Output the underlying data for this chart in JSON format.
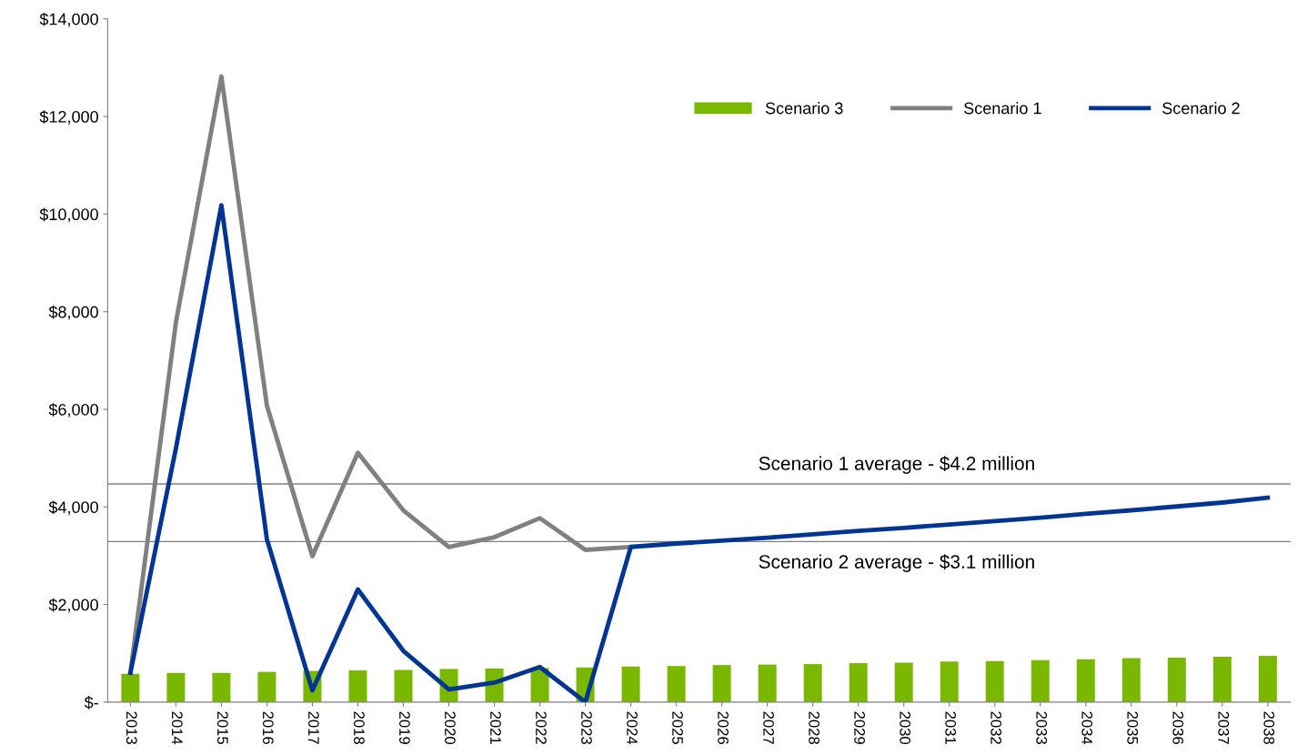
{
  "chart_data": {
    "type": "bar",
    "categories": [
      "2013",
      "2014",
      "2015",
      "2016",
      "2017",
      "2018",
      "2019",
      "2020",
      "2021",
      "2022",
      "2023",
      "2024",
      "2025",
      "2026",
      "2027",
      "2028",
      "2029",
      "2030",
      "2031",
      "2032",
      "2033",
      "2034",
      "2035",
      "2036",
      "2037",
      "2038"
    ],
    "series": [
      {
        "name": "Scenario 3",
        "color": "#7ab800",
        "values": [
          580,
          600,
          600,
          620,
          640,
          650,
          660,
          680,
          690,
          700,
          710,
          730,
          740,
          760,
          770,
          780,
          800,
          810,
          830,
          840,
          860,
          880,
          900,
          910,
          930,
          950
        ]
      },
      {
        "name": "Scenario 1",
        "type": "line",
        "color": "#808080",
        "values": [
          600,
          7780,
          12820,
          6080,
          2990,
          5110,
          3930,
          3180,
          3380,
          3770,
          3120,
          3180,
          null,
          null,
          null,
          null,
          null,
          null,
          null,
          null,
          null,
          null,
          null,
          null,
          null,
          null
        ]
      },
      {
        "name": "Scenario 2",
        "type": "line",
        "color": "#003591",
        "values": [
          600,
          5200,
          10180,
          3340,
          240,
          2310,
          1050,
          260,
          400,
          720,
          0,
          3180,
          3250,
          3310,
          3370,
          3440,
          3510,
          3570,
          3640,
          3710,
          3780,
          3860,
          3930,
          4010,
          4090,
          4190
        ]
      }
    ],
    "ylim": [
      0,
      14000
    ],
    "yticks": [
      {
        "value": 0,
        "label": "$-"
      },
      {
        "value": 2000,
        "label": "$2,000"
      },
      {
        "value": 4000,
        "label": "$4,000"
      },
      {
        "value": 6000,
        "label": "$6,000"
      },
      {
        "value": 8000,
        "label": "$8,000"
      },
      {
        "value": 10000,
        "label": "$10,000"
      },
      {
        "value": 12000,
        "label": "$12,000"
      },
      {
        "value": 14000,
        "label": "$14,000"
      }
    ],
    "ref_lines": [
      {
        "axis": "y",
        "value": 4470,
        "label": "Scenario 1 average - $4.2 million",
        "color": "#808080"
      },
      {
        "axis": "y",
        "value": 3290,
        "label": "Scenario 2 average - $3.1 million",
        "color": "#808080"
      }
    ],
    "grid": false,
    "legend": "top right",
    "marker": "none",
    "line_style": "solid"
  }
}
